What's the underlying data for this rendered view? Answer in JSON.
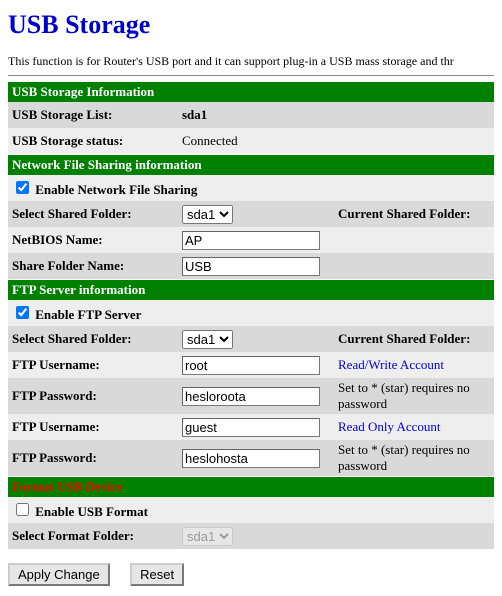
{
  "title": "USB Storage",
  "intro": "This function is for Router's USB port and it can support plug-in a USB mass storage and thr",
  "colors": {
    "header_bg": "#008000",
    "header_text": "#ffffff",
    "row_odd": "#d9d9d9",
    "row_even": "#eeeeee",
    "title_color": "#0000cc",
    "link_color": "#0000cc",
    "format_header_text": "#ff0000"
  },
  "storage": {
    "header": "USB Storage Information",
    "list_label": "USB Storage List:",
    "list_value": "sda1",
    "status_label": "USB Storage status:",
    "status_value": "Connected"
  },
  "nfs": {
    "header": "Network File Sharing information",
    "enable_label": "Enable Network File Sharing",
    "enable_checked": true,
    "select_label": "Select Shared Folder:",
    "select_value": "sda1",
    "select_options": [
      "sda1"
    ],
    "current_label": "Current Shared Folder:",
    "netbios_label": "NetBIOS Name:",
    "netbios_value": "AP",
    "share_label": "Share Folder Name:",
    "share_value": "USB"
  },
  "ftp": {
    "header": "FTP Server information",
    "enable_label": "Enable FTP Server",
    "enable_checked": true,
    "select_label": "Select Shared Folder:",
    "select_value": "sda1",
    "select_options": [
      "sda1"
    ],
    "current_label": "Current Shared Folder:",
    "user1_label": "FTP Username:",
    "user1_value": "root",
    "user1_hint": "Read/Write Account",
    "pass1_label": "FTP Password:",
    "pass1_value": "hesloroota",
    "pass1_hint": "Set to * (star) requires no password",
    "user2_label": "FTP Username:",
    "user2_value": "guest",
    "user2_hint": "Read Only Account",
    "pass2_label": "FTP Password:",
    "pass2_value": "heslohosta",
    "pass2_hint": "Set to * (star) requires no password"
  },
  "format": {
    "header": "Format USB Device",
    "enable_label": "Enable USB Format",
    "enable_checked": false,
    "select_label": "Select Format Folder:",
    "select_value": "sda1",
    "select_options": [
      "sda1"
    ],
    "select_disabled": true
  },
  "buttons": {
    "apply": "Apply Change",
    "reset": "Reset"
  }
}
